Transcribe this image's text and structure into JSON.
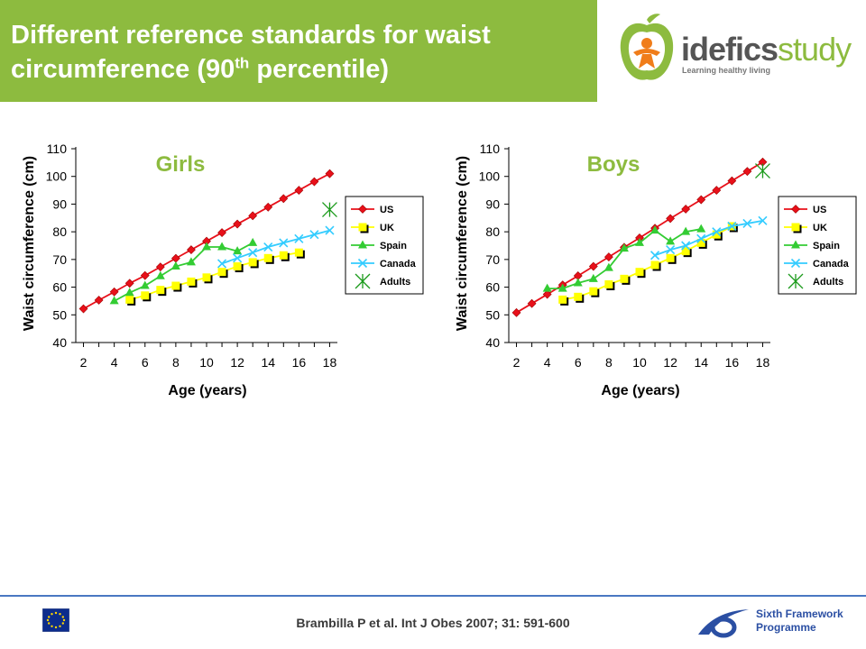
{
  "header": {
    "title_line1": "Different reference standards for waist",
    "title_line2_pre": "circumference (90",
    "title_sup": "th",
    "title_line2_post": " percentile)"
  },
  "logo": {
    "brand_bold": "idefics",
    "brand_light": "study",
    "tagline": "Learning healthy living"
  },
  "footer": {
    "citation": "Brambilla P et al. Int J Obes 2007; 31: 591-600",
    "programme_line1": "Sixth Framework",
    "programme_line2": "Programme"
  },
  "colors": {
    "header_green": "#8DBB3F",
    "us": "#E8101A",
    "uk": "#FFFF00",
    "spain": "#33CC33",
    "canada": "#33CCFF",
    "adults": "#1A9A1A"
  },
  "chart_data": [
    {
      "type": "line",
      "title": "Girls",
      "xlabel": "Age (years)",
      "ylabel": "Waist circumference (cm)",
      "xlim": [
        1.5,
        18.5
      ],
      "ylim": [
        40,
        110
      ],
      "xticks": [
        2,
        4,
        6,
        8,
        10,
        12,
        14,
        16,
        18
      ],
      "yticks": [
        40,
        50,
        60,
        70,
        80,
        90,
        100,
        110
      ],
      "legend_position": "right",
      "series": [
        {
          "name": "US",
          "marker": "diamond",
          "color": "#E8101A",
          "x": [
            2,
            3,
            4,
            5,
            6,
            7,
            8,
            9,
            10,
            11,
            12,
            13,
            14,
            15,
            16,
            17,
            18
          ],
          "y": [
            52.2,
            55.3,
            58.3,
            61.4,
            64.2,
            67.3,
            70.4,
            73.5,
            76.6,
            79.7,
            82.8,
            85.8,
            88.9,
            92.0,
            95.0,
            98.1,
            101.0
          ]
        },
        {
          "name": "UK",
          "marker": "square",
          "color": "#FFFF00",
          "x": [
            5,
            6,
            7,
            8,
            9,
            10,
            11,
            12,
            13,
            14,
            15,
            16
          ],
          "y": [
            55.5,
            57.0,
            59.0,
            60.5,
            62.0,
            63.5,
            65.5,
            67.5,
            69.0,
            70.5,
            71.5,
            72.5
          ]
        },
        {
          "name": "Spain",
          "marker": "triangle",
          "color": "#33CC33",
          "x": [
            4,
            5,
            6,
            7,
            8,
            9,
            10,
            11,
            12,
            13
          ],
          "y": [
            55.0,
            58.0,
            60.5,
            64.0,
            67.5,
            69.0,
            74.5,
            74.5,
            73.0,
            76.0
          ]
        },
        {
          "name": "Canada",
          "marker": "x",
          "color": "#33CCFF",
          "x": [
            11,
            12,
            13,
            14,
            15,
            16,
            17,
            18
          ],
          "y": [
            68.5,
            70.5,
            72.5,
            74.5,
            76.0,
            77.5,
            79.0,
            80.5
          ]
        },
        {
          "name": "Adults",
          "marker": "asterisk",
          "color": "#1A9A1A",
          "x": [
            18
          ],
          "y": [
            88.0
          ]
        }
      ]
    },
    {
      "type": "line",
      "title": "Boys",
      "xlabel": "Age (years)",
      "ylabel": "Waist circumference (cm)",
      "xlim": [
        1.5,
        18.5
      ],
      "ylim": [
        40,
        110
      ],
      "xticks": [
        2,
        4,
        6,
        8,
        10,
        12,
        14,
        16,
        18
      ],
      "yticks": [
        40,
        50,
        60,
        70,
        80,
        90,
        100,
        110
      ],
      "legend_position": "right",
      "series": [
        {
          "name": "US",
          "marker": "diamond",
          "color": "#E8101A",
          "x": [
            2,
            3,
            4,
            5,
            6,
            7,
            8,
            9,
            10,
            11,
            12,
            13,
            14,
            15,
            16,
            17,
            18
          ],
          "y": [
            50.8,
            54.1,
            57.4,
            60.8,
            64.1,
            67.5,
            70.9,
            74.4,
            77.8,
            81.3,
            84.8,
            88.2,
            91.6,
            95.0,
            98.4,
            101.8,
            105.2
          ]
        },
        {
          "name": "UK",
          "marker": "square",
          "color": "#FFFF00",
          "x": [
            5,
            6,
            7,
            8,
            9,
            10,
            11,
            12,
            13,
            14,
            15,
            16
          ],
          "y": [
            55.5,
            56.5,
            58.5,
            61.0,
            63.0,
            65.5,
            68.0,
            70.5,
            73.0,
            76.0,
            79.0,
            82.0
          ]
        },
        {
          "name": "Spain",
          "marker": "triangle",
          "color": "#33CC33",
          "x": [
            4,
            5,
            6,
            7,
            8,
            9,
            10,
            11,
            12,
            13,
            14
          ],
          "y": [
            59.5,
            59.5,
            61.5,
            63.0,
            67.0,
            74.0,
            76.0,
            80.5,
            76.5,
            80.0,
            81.0
          ]
        },
        {
          "name": "Canada",
          "marker": "x",
          "color": "#33CCFF",
          "x": [
            11,
            12,
            13,
            14,
            15,
            16,
            17,
            18
          ],
          "y": [
            71.5,
            73.5,
            75.0,
            77.5,
            80.0,
            82.0,
            83.0,
            84.0
          ]
        },
        {
          "name": "Adults",
          "marker": "asterisk",
          "color": "#1A9A1A",
          "x": [
            18
          ],
          "y": [
            102.0
          ]
        }
      ]
    }
  ]
}
